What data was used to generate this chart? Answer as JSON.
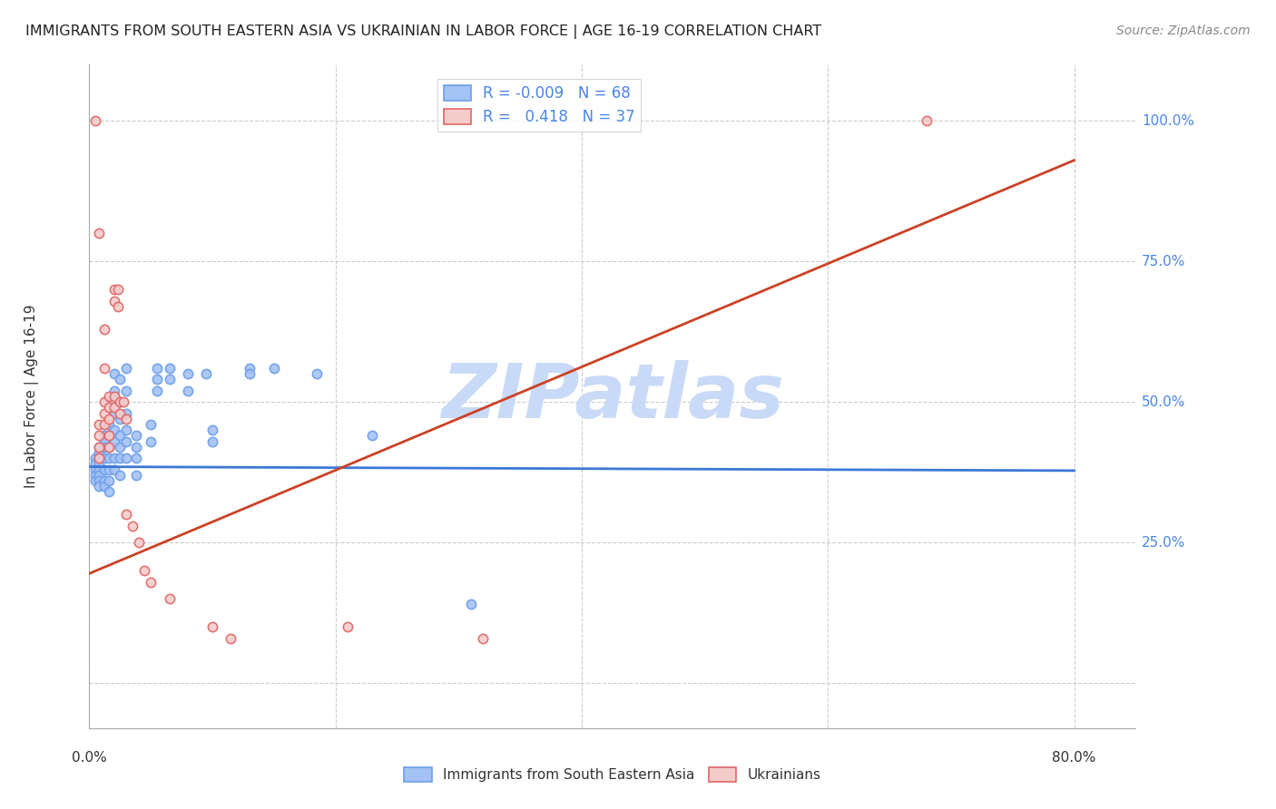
{
  "title": "IMMIGRANTS FROM SOUTH EASTERN ASIA VS UKRAINIAN IN LABOR FORCE | AGE 16-19 CORRELATION CHART",
  "source": "Source: ZipAtlas.com",
  "ylabel": "In Labor Force | Age 16-19",
  "xlim": [
    0.0,
    0.85
  ],
  "ylim": [
    -0.08,
    1.1
  ],
  "legend_r1": "-0.009",
  "legend_n1": "68",
  "legend_r2": "0.418",
  "legend_n2": "37",
  "blue_color": "#a4c2f4",
  "pink_color": "#f4cccc",
  "blue_edge_color": "#6d9eeb",
  "pink_edge_color": "#e06666",
  "blue_line_color": "#3c78d8",
  "pink_line_color": "#cc4125",
  "title_color": "#222222",
  "source_color": "#888888",
  "right_axis_color": "#4a86e8",
  "grid_color": "#cccccc",
  "watermark_color": "#c9daf8",
  "blue_scatter": [
    [
      0.005,
      0.4
    ],
    [
      0.005,
      0.39
    ],
    [
      0.005,
      0.38
    ],
    [
      0.005,
      0.37
    ],
    [
      0.005,
      0.36
    ],
    [
      0.008,
      0.42
    ],
    [
      0.008,
      0.41
    ],
    [
      0.008,
      0.4
    ],
    [
      0.008,
      0.39
    ],
    [
      0.008,
      0.38
    ],
    [
      0.008,
      0.37
    ],
    [
      0.008,
      0.36
    ],
    [
      0.008,
      0.35
    ],
    [
      0.012,
      0.44
    ],
    [
      0.012,
      0.43
    ],
    [
      0.012,
      0.42
    ],
    [
      0.012,
      0.4
    ],
    [
      0.012,
      0.38
    ],
    [
      0.012,
      0.36
    ],
    [
      0.012,
      0.35
    ],
    [
      0.016,
      0.46
    ],
    [
      0.016,
      0.44
    ],
    [
      0.016,
      0.42
    ],
    [
      0.016,
      0.4
    ],
    [
      0.016,
      0.38
    ],
    [
      0.016,
      0.36
    ],
    [
      0.016,
      0.34
    ],
    [
      0.02,
      0.55
    ],
    [
      0.02,
      0.52
    ],
    [
      0.02,
      0.48
    ],
    [
      0.02,
      0.45
    ],
    [
      0.02,
      0.43
    ],
    [
      0.02,
      0.4
    ],
    [
      0.02,
      0.38
    ],
    [
      0.025,
      0.54
    ],
    [
      0.025,
      0.5
    ],
    [
      0.025,
      0.47
    ],
    [
      0.025,
      0.44
    ],
    [
      0.025,
      0.42
    ],
    [
      0.025,
      0.4
    ],
    [
      0.025,
      0.37
    ],
    [
      0.03,
      0.56
    ],
    [
      0.03,
      0.52
    ],
    [
      0.03,
      0.48
    ],
    [
      0.03,
      0.45
    ],
    [
      0.03,
      0.43
    ],
    [
      0.03,
      0.4
    ],
    [
      0.038,
      0.44
    ],
    [
      0.038,
      0.42
    ],
    [
      0.038,
      0.4
    ],
    [
      0.038,
      0.37
    ],
    [
      0.05,
      0.46
    ],
    [
      0.05,
      0.43
    ],
    [
      0.055,
      0.56
    ],
    [
      0.055,
      0.54
    ],
    [
      0.055,
      0.52
    ],
    [
      0.065,
      0.56
    ],
    [
      0.065,
      0.54
    ],
    [
      0.08,
      0.55
    ],
    [
      0.08,
      0.52
    ],
    [
      0.095,
      0.55
    ],
    [
      0.1,
      0.45
    ],
    [
      0.1,
      0.43
    ],
    [
      0.13,
      0.56
    ],
    [
      0.13,
      0.55
    ],
    [
      0.15,
      0.56
    ],
    [
      0.185,
      0.55
    ],
    [
      0.23,
      0.44
    ],
    [
      0.31,
      0.14
    ]
  ],
  "pink_scatter": [
    [
      0.005,
      1.0
    ],
    [
      0.008,
      0.8
    ],
    [
      0.008,
      0.46
    ],
    [
      0.008,
      0.44
    ],
    [
      0.008,
      0.42
    ],
    [
      0.008,
      0.4
    ],
    [
      0.012,
      0.63
    ],
    [
      0.012,
      0.56
    ],
    [
      0.012,
      0.5
    ],
    [
      0.012,
      0.48
    ],
    [
      0.012,
      0.46
    ],
    [
      0.016,
      0.51
    ],
    [
      0.016,
      0.49
    ],
    [
      0.016,
      0.47
    ],
    [
      0.016,
      0.44
    ],
    [
      0.016,
      0.42
    ],
    [
      0.02,
      0.7
    ],
    [
      0.02,
      0.68
    ],
    [
      0.02,
      0.51
    ],
    [
      0.02,
      0.49
    ],
    [
      0.023,
      0.7
    ],
    [
      0.023,
      0.67
    ],
    [
      0.025,
      0.5
    ],
    [
      0.025,
      0.48
    ],
    [
      0.028,
      0.5
    ],
    [
      0.03,
      0.47
    ],
    [
      0.03,
      0.3
    ],
    [
      0.035,
      0.28
    ],
    [
      0.04,
      0.25
    ],
    [
      0.045,
      0.2
    ],
    [
      0.05,
      0.18
    ],
    [
      0.065,
      0.15
    ],
    [
      0.1,
      0.1
    ],
    [
      0.115,
      0.08
    ],
    [
      0.21,
      0.1
    ],
    [
      0.32,
      0.08
    ],
    [
      0.68,
      1.0
    ]
  ],
  "blue_trendline_x": [
    0.0,
    0.8
  ],
  "blue_trendline_y": [
    0.385,
    0.378
  ],
  "pink_trendline_x": [
    0.0,
    0.8
  ],
  "pink_trendline_y": [
    0.195,
    0.93
  ],
  "bottom_legend_blue": "Immigrants from South Eastern Asia",
  "bottom_legend_pink": "Ukrainians",
  "marker_size": 55,
  "marker_linewidth": 1.2
}
